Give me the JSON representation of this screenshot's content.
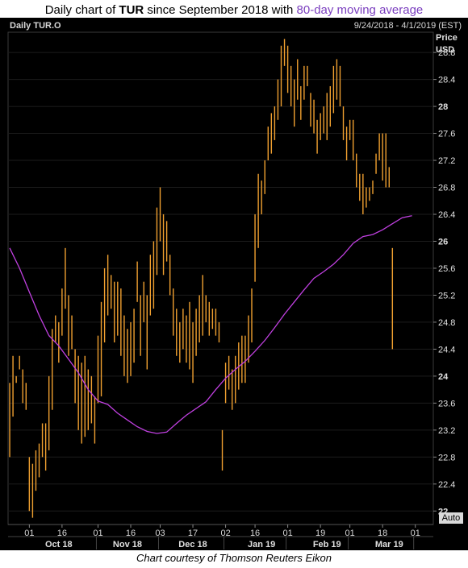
{
  "title": {
    "prefix": "Daily chart of ",
    "ticker": "TUR",
    "mid": " since September 2018 with ",
    "ma": "80-day moving average"
  },
  "panel": {
    "ticker_label": "Daily TUR.O",
    "date_range": "9/24/2018 - 4/1/2019 (EST)",
    "price_label": "Price",
    "unit_label": "USD",
    "auto_button": "Auto"
  },
  "caption": "Chart courtesy of Thomson Reuters Eikon",
  "colors": {
    "background": "#000000",
    "bars": "#f0a030",
    "ma_line": "#c040e0",
    "grid": "#1c1c1c"
  },
  "chart_data": {
    "type": "line",
    "ylim": [
      21.8,
      29.1
    ],
    "y_ticks": [
      22,
      22.4,
      22.8,
      23.2,
      23.6,
      24,
      24.4,
      24.8,
      25.2,
      25.6,
      26,
      26.4,
      26.8,
      27.2,
      27.6,
      28,
      28.4,
      28.8
    ],
    "y_tick_labels": [
      "22",
      "22.4",
      "22.8",
      "23.2",
      "23.6",
      "24",
      "24.4",
      "24.8",
      "25.2",
      "25.6",
      "26",
      "26.4",
      "26.8",
      "27.2",
      "27.6",
      "28",
      "28.4",
      "28.8"
    ],
    "bold_ticks": [
      22,
      24,
      26,
      28
    ],
    "x_day_ticks": [
      "01",
      "16",
      "01",
      "16",
      "03",
      "17",
      "02",
      "16",
      "01",
      "19",
      "01",
      "18",
      "01"
    ],
    "x_day_tick_index": [
      6,
      16,
      27,
      37,
      46,
      56,
      66,
      75,
      85,
      95,
      104,
      114,
      124
    ],
    "x_month_labels": [
      "Oct 18",
      "Nov 18",
      "Dec 18",
      "Jan 19",
      "Feb 19",
      "Mar 19"
    ],
    "x_month_label_index": [
      15,
      36,
      56,
      77,
      97,
      116
    ],
    "x_month_sep_index": [
      26.5,
      45.5,
      65.5,
      84.5,
      103.5,
      123.5
    ],
    "series": [
      {
        "type": "ohlc",
        "start_index": 0,
        "low": [
          22.8,
          23.4,
          23.9,
          24.1,
          23.6,
          23.5,
          22.0,
          21.9,
          22.3,
          22.5,
          22.8,
          22.6,
          22.9,
          23.5,
          24.5,
          24.2,
          24.6,
          25.0,
          24.3,
          24.4,
          23.6,
          23.2,
          23.0,
          23.1,
          23.2,
          23.3,
          23.0,
          23.6,
          23.7,
          24.5,
          24.9,
          25.0,
          24.5,
          24.6,
          24.3,
          24.0,
          23.9,
          24.0,
          24.2,
          25.1,
          24.3,
          24.8,
          24.1,
          24.9,
          25.0,
          25.5,
          26.0,
          25.5,
          25.7,
          25.2,
          24.6,
          24.3,
          24.2,
          24.4,
          24.2,
          24.1,
          23.9,
          24.3,
          24.5,
          24.6,
          24.8,
          24.6,
          24.7,
          24.6,
          24.5,
          22.6,
          23.6,
          23.8,
          23.5,
          23.6,
          23.8,
          23.9,
          23.9,
          24.2,
          24.5,
          25.4,
          25.9,
          26.4,
          26.7,
          27.2,
          27.3,
          27.5,
          27.8,
          28.0,
          28.6,
          28.2,
          28.0,
          27.7,
          28.1,
          27.8,
          28.1,
          28.3,
          27.7,
          27.6,
          27.3,
          27.5,
          27.6,
          27.5,
          27.7,
          27.9,
          28.1,
          28.0,
          27.5,
          27.2,
          27.5,
          27.2,
          26.8,
          26.6,
          26.4,
          26.5,
          26.6,
          26.7,
          27.0,
          27.2,
          26.9,
          26.8,
          26.8,
          24.4
        ],
        "high": [
          23.9,
          24.3,
          24.0,
          24.3,
          24.1,
          23.9,
          22.8,
          22.7,
          22.9,
          23.0,
          23.3,
          23.3,
          24.0,
          24.7,
          24.9,
          24.8,
          25.3,
          25.9,
          25.2,
          24.9,
          24.4,
          24.3,
          24.2,
          24.3,
          24.1,
          24.0,
          23.7,
          24.6,
          25.1,
          25.6,
          25.8,
          25.5,
          25.4,
          25.4,
          25.3,
          24.9,
          24.7,
          24.8,
          25.0,
          25.7,
          25.2,
          25.4,
          25.2,
          25.8,
          26.0,
          26.5,
          26.8,
          26.4,
          26.3,
          25.8,
          25.3,
          25.0,
          24.8,
          25.0,
          24.9,
          25.1,
          24.8,
          25.0,
          25.2,
          25.5,
          25.2,
          25.1,
          25.0,
          25.0,
          24.8,
          23.2,
          24.2,
          24.3,
          24.1,
          24.3,
          24.5,
          24.6,
          24.6,
          24.9,
          25.3,
          26.4,
          27.0,
          26.9,
          27.2,
          27.7,
          27.9,
          28.0,
          28.4,
          28.9,
          29.0,
          28.9,
          28.6,
          28.4,
          28.7,
          28.3,
          28.6,
          28.6,
          28.2,
          28.1,
          27.8,
          27.9,
          28.0,
          28.2,
          28.3,
          28.6,
          28.7,
          28.6,
          28.0,
          27.7,
          27.8,
          27.8,
          27.3,
          27.0,
          27.0,
          26.8,
          26.8,
          26.9,
          27.3,
          27.6,
          27.6,
          27.6,
          27.1,
          25.9
        ]
      },
      {
        "name": "80-day moving average",
        "x": [
          0,
          3,
          6,
          9,
          12,
          15,
          18,
          21,
          24,
          27,
          30,
          33,
          36,
          39,
          42,
          45,
          48,
          51,
          54,
          57,
          60,
          63,
          66,
          69,
          72,
          75,
          78,
          81,
          84,
          87,
          90,
          93,
          96,
          99,
          102,
          105,
          108,
          111,
          114,
          117,
          120,
          123
        ],
        "values": [
          25.9,
          25.6,
          25.25,
          24.9,
          24.6,
          24.45,
          24.25,
          24.05,
          23.8,
          23.63,
          23.58,
          23.45,
          23.35,
          23.25,
          23.18,
          23.15,
          23.17,
          23.3,
          23.42,
          23.52,
          23.62,
          23.8,
          23.97,
          24.1,
          24.22,
          24.37,
          24.53,
          24.72,
          24.92,
          25.1,
          25.28,
          25.45,
          25.55,
          25.66,
          25.8,
          25.97,
          26.07,
          26.1,
          26.17,
          26.26,
          26.35,
          26.38
        ]
      }
    ]
  }
}
